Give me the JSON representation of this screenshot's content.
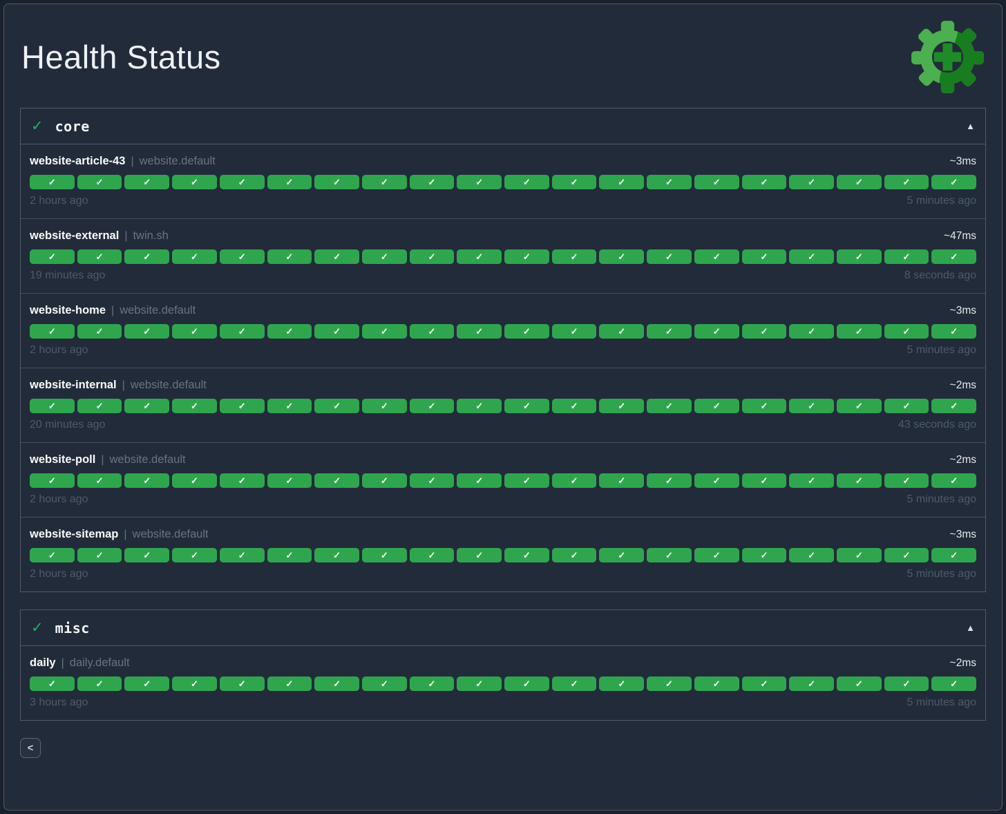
{
  "page": {
    "title": "Health Status"
  },
  "icons": {
    "ok": "✓",
    "collapse": "▲",
    "back": "<"
  },
  "check_separator": "|",
  "colors": {
    "bead_green": "#2fa64e",
    "status_green": "#27ae60",
    "logo_light_green": "#4caf50",
    "logo_dark_green": "#177d1e",
    "logo_plus_green": "#1e8c26"
  },
  "sections": [
    {
      "name": "core",
      "status": "ok",
      "checks": [
        {
          "name": "website-article-43",
          "group": "website.default",
          "latency": "~3ms",
          "first_check": "2 hours ago",
          "last_check": "5 minutes ago",
          "beads": 20,
          "bead_status": "ok"
        },
        {
          "name": "website-external",
          "group": "twin.sh",
          "latency": "~47ms",
          "first_check": "19 minutes ago",
          "last_check": "8 seconds ago",
          "beads": 20,
          "bead_status": "ok"
        },
        {
          "name": "website-home",
          "group": "website.default",
          "latency": "~3ms",
          "first_check": "2 hours ago",
          "last_check": "5 minutes ago",
          "beads": 20,
          "bead_status": "ok"
        },
        {
          "name": "website-internal",
          "group": "website.default",
          "latency": "~2ms",
          "first_check": "20 minutes ago",
          "last_check": "43 seconds ago",
          "beads": 20,
          "bead_status": "ok"
        },
        {
          "name": "website-poll",
          "group": "website.default",
          "latency": "~2ms",
          "first_check": "2 hours ago",
          "last_check": "5 minutes ago",
          "beads": 20,
          "bead_status": "ok"
        },
        {
          "name": "website-sitemap",
          "group": "website.default",
          "latency": "~3ms",
          "first_check": "2 hours ago",
          "last_check": "5 minutes ago",
          "beads": 20,
          "bead_status": "ok"
        }
      ]
    },
    {
      "name": "misc",
      "status": "ok",
      "checks": [
        {
          "name": "daily",
          "group": "daily.default",
          "latency": "~2ms",
          "first_check": "3 hours ago",
          "last_check": "5 minutes ago",
          "beads": 20,
          "bead_status": "ok"
        }
      ]
    }
  ],
  "footer": {
    "back_label": "<"
  }
}
